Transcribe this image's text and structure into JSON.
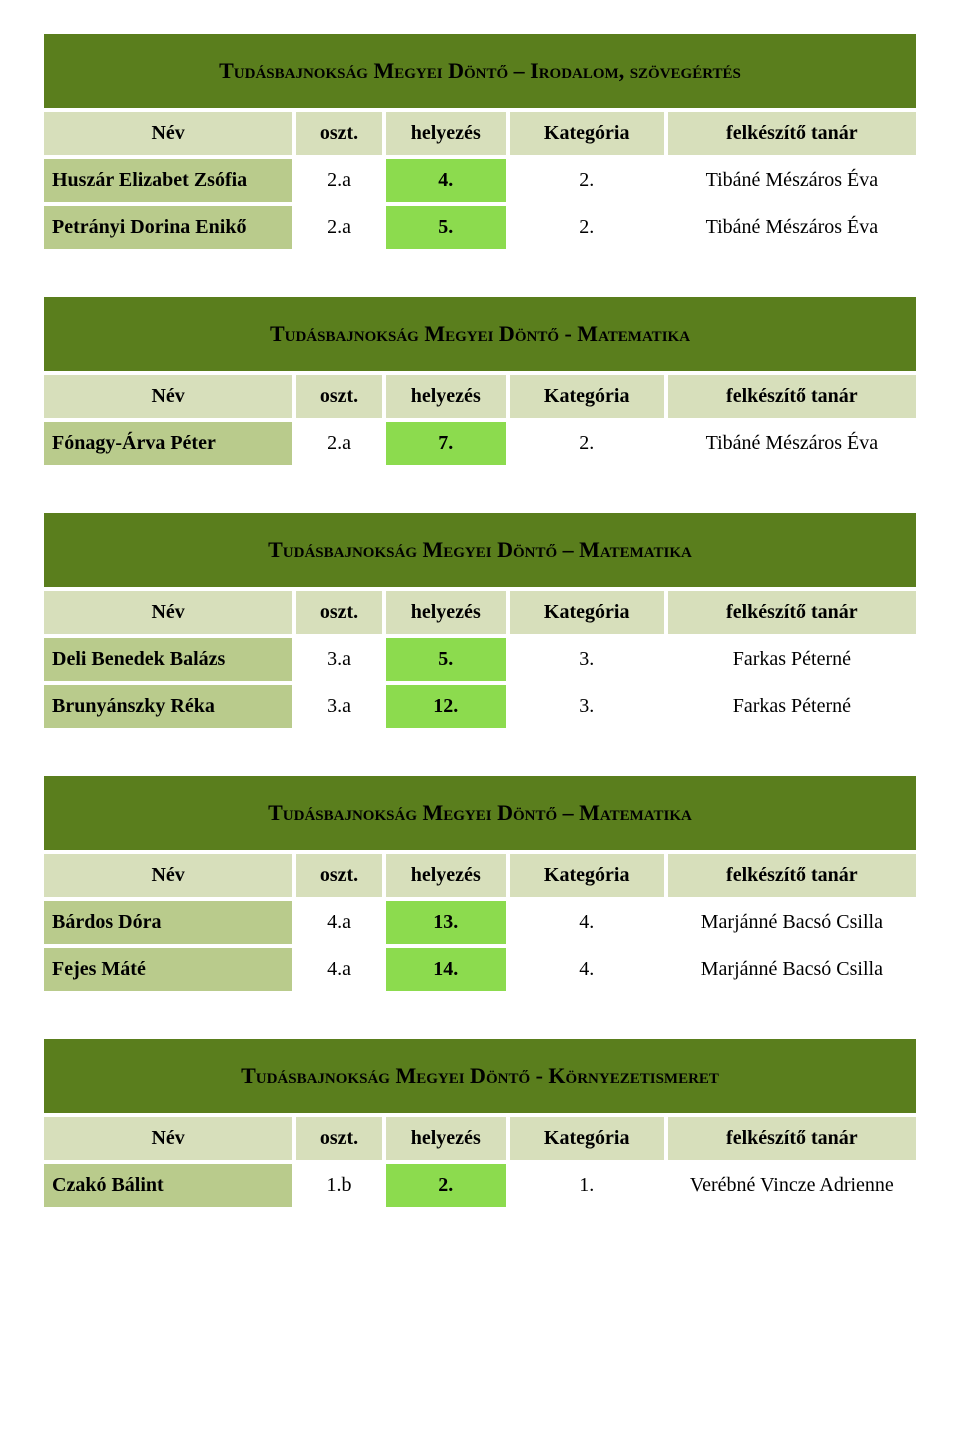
{
  "colors": {
    "title_bg": "#5a7e1d",
    "title_text": "#000000",
    "header_bg": "#d7dfbb",
    "header_text": "#000000",
    "row_bg": "#b9cb8c",
    "highlight_bg": "#8cdb4e",
    "white_bg": "#ffffff",
    "text": "#000000"
  },
  "column_headers": {
    "nev": "Név",
    "oszt": "oszt.",
    "hely": "helyezés",
    "kat": "Kategória",
    "felk": "felkészítő tanár"
  },
  "sections": [
    {
      "title": "Tudásbajnokság Megyei Döntő – Irodalom, szövegértés",
      "rows": [
        {
          "name": "Huszár Elizabet Zsófia",
          "oszt": "2.a",
          "hely": "4.",
          "kat": "2.",
          "felk": "Tibáné Mészáros Éva"
        },
        {
          "name": "Petrányi Dorina Enikő",
          "oszt": "2.a",
          "hely": "5.",
          "kat": "2.",
          "felk": "Tibáné Mészáros Éva"
        }
      ]
    },
    {
      "title": "Tudásbajnokság Megyei Döntő - Matematika",
      "rows": [
        {
          "name": "Fónagy-Árva Péter",
          "oszt": "2.a",
          "hely": "7.",
          "kat": "2.",
          "felk": "Tibáné Mészáros Éva"
        }
      ]
    },
    {
      "title": "Tudásbajnokság Megyei Döntő – Matematika",
      "rows": [
        {
          "name": "Deli Benedek Balázs",
          "oszt": "3.a",
          "hely": "5.",
          "kat": "3.",
          "felk": "Farkas Péterné"
        },
        {
          "name": "Brunyánszky Réka",
          "oszt": "3.a",
          "hely": "12.",
          "kat": "3.",
          "felk": "Farkas Péterné"
        }
      ]
    },
    {
      "title": "Tudásbajnokság Megyei Döntő – Matematika",
      "rows": [
        {
          "name": "Bárdos Dóra",
          "oszt": "4.a",
          "hely": "13.",
          "kat": "4.",
          "felk": "Marjánné Bacsó Csilla"
        },
        {
          "name": "Fejes Máté",
          "oszt": "4.a",
          "hely": "14.",
          "kat": "4.",
          "felk": "Marjánné Bacsó Csilla"
        }
      ]
    },
    {
      "title": "Tudásbajnokság Megyei Döntő - Környezetismeret",
      "rows": [
        {
          "name": "Czakó Bálint",
          "oszt": "1.b",
          "hely": "2.",
          "kat": "1.",
          "felk": "Verébné Vincze Adrienne"
        }
      ]
    }
  ]
}
